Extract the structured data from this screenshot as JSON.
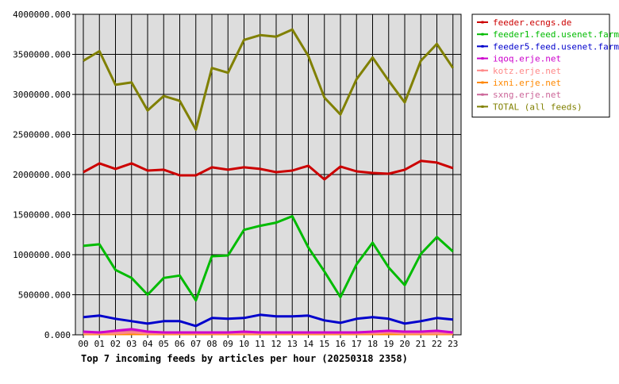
{
  "chart_data": {
    "type": "line",
    "title": "Top 7 incoming feeds by articles per hour (20250318 2358)",
    "xlabel": "",
    "ylabel": "",
    "categories": [
      "00",
      "01",
      "02",
      "03",
      "04",
      "05",
      "06",
      "07",
      "08",
      "09",
      "10",
      "11",
      "12",
      "13",
      "14",
      "15",
      "16",
      "17",
      "18",
      "19",
      "20",
      "21",
      "22",
      "23"
    ],
    "y_ticks": [
      0,
      500000,
      1000000,
      1500000,
      2000000,
      2500000,
      3000000,
      3500000,
      4000000
    ],
    "y_tick_labels": [
      "0.000",
      "500000.000",
      "1000000.000",
      "1500000.000",
      "2000000.000",
      "2500000.000",
      "3000000.000",
      "3500000.000",
      "4000000.000"
    ],
    "ylim": [
      0,
      4000000
    ],
    "grid": true,
    "legend_position": "top-right",
    "series": [
      {
        "name": "feeder.ecngs.de",
        "color": "#cc0000",
        "values": [
          2030000,
          2140000,
          2070000,
          2140000,
          2050000,
          2060000,
          1990000,
          1990000,
          2090000,
          2060000,
          2090000,
          2070000,
          2030000,
          2050000,
          2110000,
          1940000,
          2100000,
          2040000,
          2020000,
          2010000,
          2060000,
          2170000,
          2150000,
          2080000
        ]
      },
      {
        "name": "feeder1.feed.usenet.farm",
        "color": "#00bb00",
        "values": [
          1110000,
          1130000,
          810000,
          710000,
          500000,
          710000,
          740000,
          430000,
          980000,
          990000,
          1310000,
          1360000,
          1400000,
          1480000,
          1090000,
          790000,
          470000,
          880000,
          1150000,
          840000,
          620000,
          1010000,
          1220000,
          1040000
        ]
      },
      {
        "name": "feeder5.feed.usenet.farm",
        "color": "#0000cc",
        "values": [
          220000,
          240000,
          200000,
          170000,
          140000,
          170000,
          170000,
          110000,
          210000,
          200000,
          210000,
          250000,
          230000,
          230000,
          240000,
          180000,
          150000,
          200000,
          220000,
          200000,
          140000,
          170000,
          210000,
          190000
        ]
      },
      {
        "name": "iqoq.erje.net",
        "color": "#cc00cc",
        "values": [
          40000,
          30000,
          50000,
          70000,
          40000,
          30000,
          30000,
          30000,
          30000,
          30000,
          40000,
          30000,
          30000,
          30000,
          30000,
          30000,
          30000,
          30000,
          40000,
          50000,
          40000,
          40000,
          50000,
          30000
        ]
      },
      {
        "name": "kotz.erje.net",
        "color": "#ff8888",
        "values": [
          20000,
          20000,
          20000,
          30000,
          20000,
          20000,
          20000,
          20000,
          20000,
          20000,
          20000,
          20000,
          20000,
          20000,
          20000,
          20000,
          20000,
          20000,
          20000,
          30000,
          20000,
          20000,
          20000,
          20000
        ]
      },
      {
        "name": "ixni.erje.net",
        "color": "#ff8800",
        "values": [
          10000,
          10000,
          10000,
          10000,
          10000,
          10000,
          10000,
          10000,
          10000,
          10000,
          10000,
          10000,
          10000,
          10000,
          10000,
          10000,
          10000,
          10000,
          10000,
          10000,
          10000,
          10000,
          10000,
          10000
        ]
      },
      {
        "name": "sxng.erje.net",
        "color": "#cc6699",
        "values": [
          30000,
          30000,
          40000,
          40000,
          30000,
          30000,
          30000,
          30000,
          30000,
          30000,
          30000,
          30000,
          30000,
          30000,
          30000,
          30000,
          30000,
          30000,
          30000,
          40000,
          30000,
          30000,
          40000,
          30000
        ]
      },
      {
        "name": "TOTAL (all feeds)",
        "color": "#808000",
        "values": [
          3420000,
          3540000,
          3120000,
          3150000,
          2800000,
          2980000,
          2920000,
          2560000,
          3330000,
          3270000,
          3680000,
          3740000,
          3720000,
          3810000,
          3480000,
          2960000,
          2750000,
          3190000,
          3460000,
          3170000,
          2900000,
          3420000,
          3630000,
          3330000
        ]
      }
    ]
  }
}
